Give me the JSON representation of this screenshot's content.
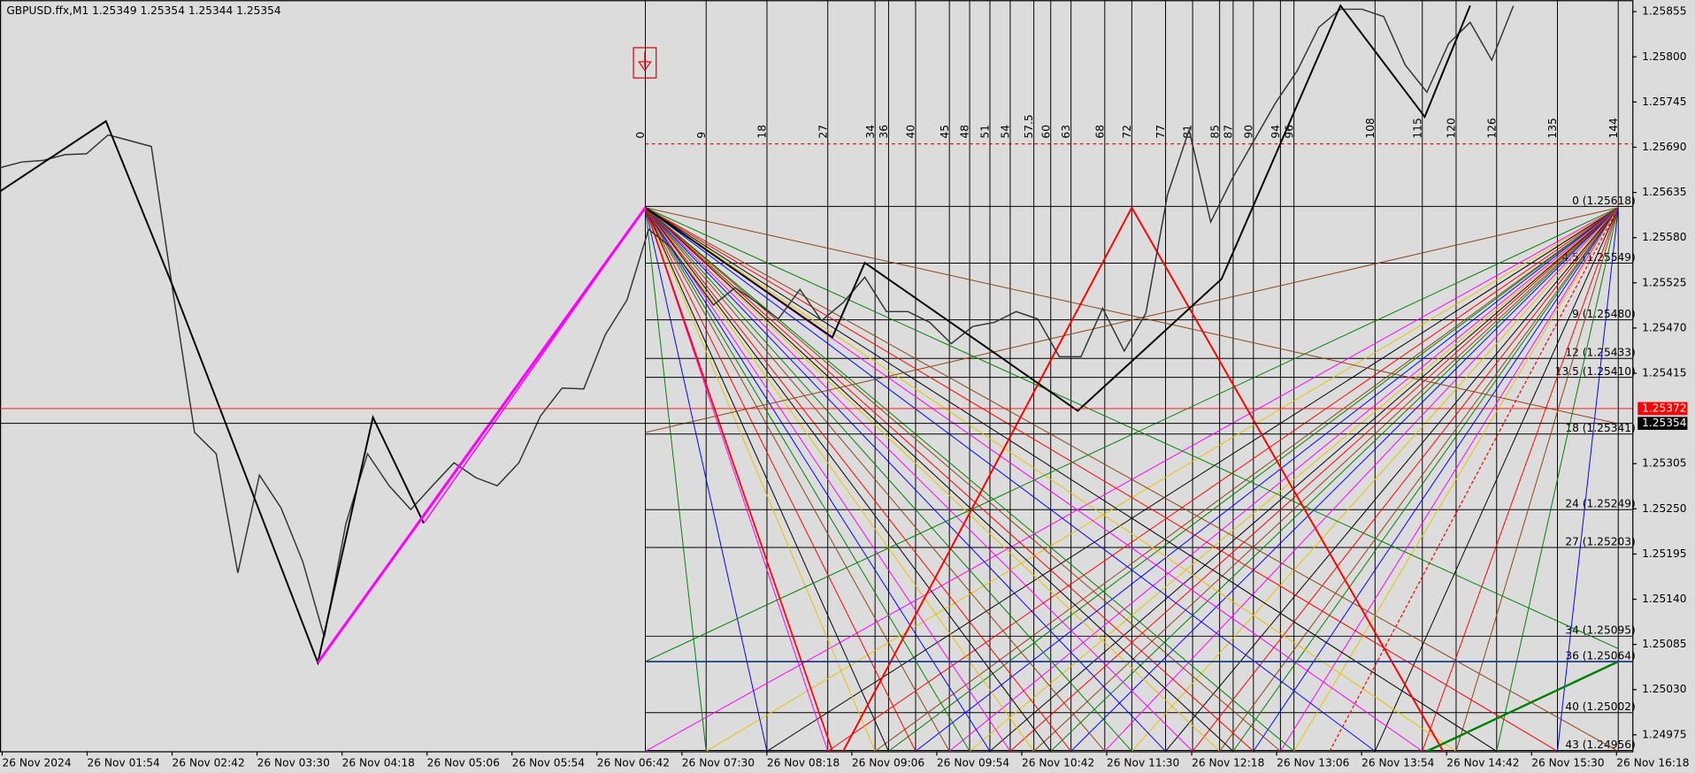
{
  "chart_data": {
    "type": "line",
    "title": "GBPUSD.ffx,M1  1.25349 1.25354 1.25344 1.25354",
    "series": [
      {
        "name": "GBPUSD.ffx",
        "color": "#333333",
        "values": [
          1.25665,
          1.25672,
          1.25674,
          1.25681,
          1.25682,
          1.25705,
          1.25698,
          1.25691,
          1.25514,
          1.25343,
          1.25317,
          1.25172,
          1.25291,
          1.25251,
          1.25186,
          1.25094,
          1.25232,
          1.25317,
          1.25278,
          1.25249,
          1.25278,
          1.25306,
          1.25288,
          1.25278,
          1.25306,
          1.25363,
          1.25397,
          1.25396,
          1.25462,
          1.25504,
          1.2559,
          1.25569,
          1.25534,
          1.25498,
          1.25519,
          1.25501,
          1.25481,
          1.25517,
          1.25479,
          1.25501,
          1.25532,
          1.2549,
          1.2549,
          1.25477,
          1.25451,
          1.25472,
          1.25477,
          1.2549,
          1.25481,
          1.25435,
          1.25435,
          1.25494,
          1.25442,
          1.25488,
          1.25632,
          1.25711,
          1.25599,
          1.25652,
          1.25698,
          1.25744,
          1.25783,
          1.25836,
          1.25858,
          1.25858,
          1.25849,
          1.2579,
          1.25757,
          1.25816,
          1.25842,
          1.25796,
          1.25862
        ]
      }
    ],
    "x_labels": [
      "26 Nov 2024",
      "26 Nov 01:54",
      "26 Nov 02:42",
      "26 Nov 03:30",
      "26 Nov 04:18",
      "26 Nov 05:06",
      "26 Nov 05:54",
      "26 Nov 06:42",
      "26 Nov 07:30",
      "26 Nov 08:18",
      "26 Nov 09:06",
      "26 Nov 09:54",
      "26 Nov 10:42",
      "26 Nov 11:30",
      "26 Nov 12:18",
      "26 Nov 13:06",
      "26 Nov 13:54",
      "26 Nov 14:42",
      "26 Nov 15:30",
      "26 Nov 16:18"
    ],
    "ylim": [
      1.24955,
      1.25869
    ],
    "yticks": [
      1.25855,
      {
        "value": 1.258,
        "label": "1.25800"
      },
      1.25745,
      {
        "value": 1.2569,
        "label": "1.25690"
      },
      1.25635,
      {
        "value": 1.2558,
        "label": "1.25580"
      },
      1.25525,
      {
        "value": 1.2547,
        "label": "1.25470"
      },
      1.25415,
      1.25305,
      {
        "value": 1.2525,
        "label": "1.25250"
      },
      1.25195,
      {
        "value": 1.2514,
        "label": "1.25140"
      },
      1.25085,
      {
        "value": 1.2503,
        "label": "1.25030"
      },
      1.24975
    ],
    "price_lines": [
      {
        "value": 1.25372,
        "color": "#ff0000"
      },
      {
        "value": 1.25354,
        "color": "#000000"
      }
    ],
    "gann_time": [
      0,
      9,
      18,
      27,
      34,
      36,
      40,
      45,
      48,
      51,
      54,
      57.5,
      60,
      63,
      68,
      72,
      77,
      81,
      85,
      87,
      90,
      94,
      96,
      108,
      115,
      120,
      126,
      135,
      144
    ],
    "levels": [
      {
        "label": "0 (1.25618)",
        "value": 1.25618
      },
      {
        "label": "4.5 (1.25549)",
        "value": 1.25549
      },
      {
        "label": "9 (1.25480)",
        "value": 1.2548
      },
      {
        "label": "12 (1.25433)",
        "value": 1.25433
      },
      {
        "label": "13.5 (1.25410)",
        "value": 1.2541
      },
      {
        "label": "18 (1.25341)",
        "value": 1.25341
      },
      {
        "label": "24 (1.25249)",
        "value": 1.25249
      },
      {
        "label": "27 (1.25203)",
        "value": 1.25203
      },
      {
        "label": "34 (1.25095)",
        "value": 1.25095
      },
      {
        "label": "36 (1.25064)",
        "value": 1.25064
      },
      {
        "label": "40 (1.25002)",
        "value": 1.25002
      },
      {
        "label": "43 (1.24956)",
        "value": 1.24956
      }
    ]
  }
}
